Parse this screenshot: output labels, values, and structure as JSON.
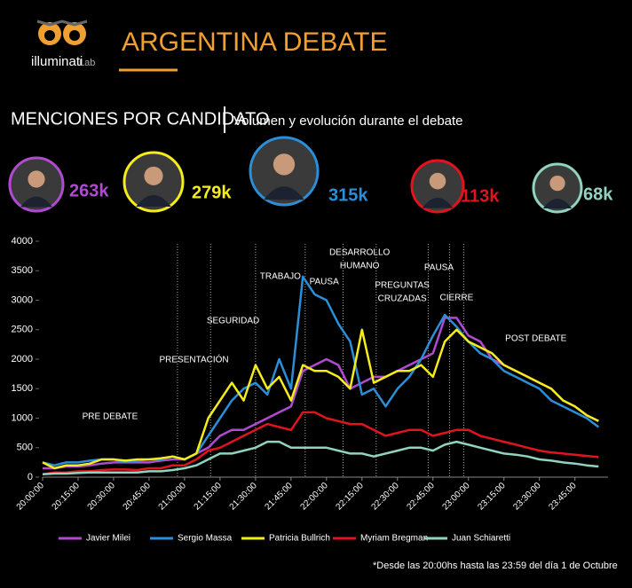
{
  "logo": {
    "brand": "illuminati",
    "suffix": "Lab"
  },
  "title": "ARGENTINA DEBATE",
  "heading": "MENCIONES POR CANDIDATO",
  "subheading": "Volumen y evolución durante el debate",
  "mentions": {
    "values": [
      263000,
      279000,
      315000,
      113000,
      68000
    ],
    "value_labels": [
      "263k",
      "279k",
      "315k",
      "113k",
      "68k"
    ],
    "colors": [
      "#b04ad0",
      "#f5ec1c",
      "#2a8fd8",
      "#e0141c",
      "#8fd3c0"
    ]
  },
  "chart_data": {
    "type": "line",
    "x": [
      "20:00:00",
      "20:05:00",
      "20:10:00",
      "20:15:00",
      "20:20:00",
      "20:25:00",
      "20:30:00",
      "20:35:00",
      "20:40:00",
      "20:45:00",
      "20:50:00",
      "20:55:00",
      "21:00:00",
      "21:05:00",
      "21:10:00",
      "21:15:00",
      "21:20:00",
      "21:25:00",
      "21:30:00",
      "21:35:00",
      "21:40:00",
      "21:45:00",
      "21:50:00",
      "21:55:00",
      "22:00:00",
      "22:05:00",
      "22:10:00",
      "22:15:00",
      "22:20:00",
      "22:25:00",
      "22:30:00",
      "22:35:00",
      "22:40:00",
      "22:45:00",
      "22:50:00",
      "22:55:00",
      "23:00:00",
      "23:05:00",
      "23:10:00",
      "23:15:00",
      "23:20:00",
      "23:25:00",
      "23:30:00",
      "23:35:00",
      "23:40:00",
      "23:45:00",
      "23:50:00",
      "23:55:00"
    ],
    "xlim": [
      "20:00:00",
      "23:59:00"
    ],
    "xticks": [
      "20:00:00",
      "20:15:00",
      "20:30:00",
      "20:45:00",
      "21:00:00",
      "21:15:00",
      "21:30:00",
      "21:45:00",
      "22:00:00",
      "22:15:00",
      "22:30:00",
      "22:45:00",
      "23:00:00",
      "23:15:00",
      "23:30:00",
      "23:45:00"
    ],
    "ylim": [
      0,
      4000
    ],
    "yticks": [
      0,
      500,
      1000,
      1500,
      2000,
      2500,
      3000,
      3500,
      4000
    ],
    "grid": false,
    "phase_starts": [
      "20:57:00",
      "21:11:00",
      "21:30:00",
      "21:51:00",
      "22:07:00",
      "22:21:00",
      "22:43:00",
      "22:52:00",
      "22:58:00"
    ],
    "phases": [
      [
        "PRE DEBATE"
      ],
      [
        "PRESENTACIÓN"
      ],
      [
        "SEGURIDAD"
      ],
      [
        "TRABAJO"
      ],
      [
        "PAUSA"
      ],
      [
        "DESARROLLO",
        "HUMANO"
      ],
      [
        "PREGUNTAS",
        "CRUZADAS"
      ],
      [
        "PAUSA"
      ],
      [
        "CIERRE"
      ],
      [
        "POST DEBATE"
      ]
    ],
    "series": [
      {
        "name": "Javier Milei",
        "color": "#b04ad0",
        "values": [
          150,
          150,
          180,
          180,
          200,
          230,
          250,
          250,
          250,
          250,
          280,
          300,
          300,
          400,
          500,
          700,
          800,
          800,
          900,
          1000,
          1100,
          1200,
          1800,
          1900,
          2000,
          1900,
          1500,
          1600,
          1700,
          1700,
          1800,
          1900,
          2000,
          2100,
          2700,
          2700,
          2400,
          2300,
          2000,
          1900,
          1800,
          1700,
          1600,
          1500,
          1300,
          1200,
          1050,
          950
        ]
      },
      {
        "name": "Sergio Massa",
        "color": "#2a8fd8",
        "values": [
          250,
          200,
          250,
          250,
          280,
          300,
          300,
          250,
          280,
          300,
          300,
          350,
          300,
          400,
          700,
          1000,
          1300,
          1500,
          1600,
          1400,
          2000,
          1500,
          3400,
          3100,
          3000,
          2600,
          2300,
          1400,
          1500,
          1200,
          1500,
          1700,
          2000,
          2400,
          2750,
          2550,
          2300,
          2100,
          2000,
          1800,
          1700,
          1600,
          1500,
          1300,
          1200,
          1100,
          1000,
          850
        ]
      },
      {
        "name": "Patricia Bullrich",
        "color": "#f5ec1c",
        "values": [
          250,
          150,
          200,
          200,
          230,
          300,
          300,
          280,
          300,
          300,
          320,
          350,
          300,
          400,
          1000,
          1300,
          1600,
          1300,
          1900,
          1500,
          1700,
          1300,
          1900,
          1800,
          1800,
          1700,
          1500,
          2500,
          1600,
          1700,
          1800,
          1800,
          1900,
          1700,
          2300,
          2500,
          2300,
          2200,
          2100,
          1900,
          1800,
          1700,
          1600,
          1500,
          1300,
          1200,
          1050,
          950
        ]
      },
      {
        "name": "Myriam Bregman",
        "color": "#e0141c",
        "values": [
          50,
          80,
          80,
          100,
          100,
          120,
          130,
          130,
          120,
          150,
          150,
          200,
          200,
          300,
          450,
          500,
          600,
          700,
          800,
          900,
          850,
          800,
          1100,
          1100,
          1000,
          950,
          900,
          900,
          800,
          700,
          750,
          800,
          800,
          700,
          750,
          800,
          800,
          700,
          650,
          600,
          550,
          500,
          450,
          420,
          400,
          380,
          360,
          340
        ]
      },
      {
        "name": "Juan Schiaretti",
        "color": "#8fd3c0",
        "values": [
          50,
          60,
          60,
          70,
          80,
          80,
          80,
          80,
          80,
          100,
          100,
          120,
          150,
          200,
          300,
          400,
          400,
          450,
          500,
          600,
          600,
          500,
          500,
          500,
          500,
          450,
          400,
          400,
          350,
          400,
          450,
          500,
          500,
          450,
          550,
          600,
          550,
          500,
          450,
          400,
          380,
          350,
          300,
          280,
          250,
          230,
          200,
          180
        ]
      }
    ]
  },
  "footnote": "*Desde las 20:00hs  hasta las 23:59  del día 1 de Octubre"
}
